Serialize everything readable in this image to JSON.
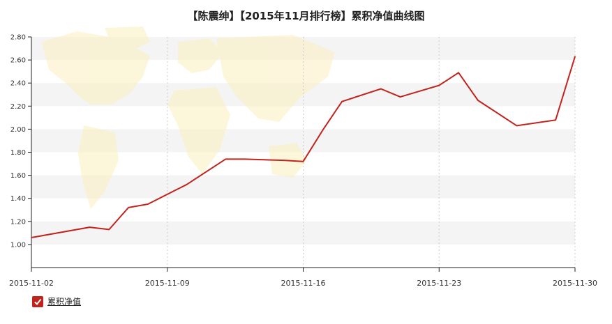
{
  "header": {
    "title": "【陈震绅】【2015年11月排行榜】累积净值曲线图"
  },
  "legend": {
    "label": "累积净值",
    "checked": true,
    "icon": "check-icon"
  },
  "colors": {
    "line": "#c0241c",
    "band": "#f4f4f4",
    "map": "#fbefbf",
    "grid": "#cccccc",
    "axis": "#222222"
  },
  "chart_data": {
    "type": "line",
    "title": "【陈震绅】【2015年11月排行榜】累积净值曲线图",
    "xlabel": "",
    "ylabel": "",
    "ylim": [
      0.8,
      2.8
    ],
    "xlim": [
      "2015-11-02",
      "2015-11-30"
    ],
    "grid": true,
    "legend_position": "bottom-left",
    "yticks": [
      "2.80",
      "2.60",
      "2.40",
      "2.20",
      "2.00",
      "1.80",
      "1.60",
      "1.40",
      "1.20",
      "1.00"
    ],
    "xticks": [
      "2015-11-02",
      "2015-11-09",
      "2015-11-16",
      "2015-11-23",
      "2015-11-30"
    ],
    "series": [
      {
        "name": "累积净值",
        "x": [
          "2015-11-02",
          "2015-11-05",
          "2015-11-06",
          "2015-11-07",
          "2015-11-08",
          "2015-11-10",
          "2015-11-12",
          "2015-11-13",
          "2015-11-15",
          "2015-11-16",
          "2015-11-17",
          "2015-11-18",
          "2015-11-20",
          "2015-11-21",
          "2015-11-23",
          "2015-11-24",
          "2015-11-25",
          "2015-11-27",
          "2015-11-29",
          "2015-11-30"
        ],
        "values": [
          1.06,
          1.15,
          1.13,
          1.32,
          1.35,
          1.52,
          1.74,
          1.74,
          1.73,
          1.72,
          1.99,
          2.24,
          2.35,
          2.28,
          2.38,
          2.49,
          2.25,
          2.03,
          2.08,
          2.63
        ]
      }
    ]
  }
}
